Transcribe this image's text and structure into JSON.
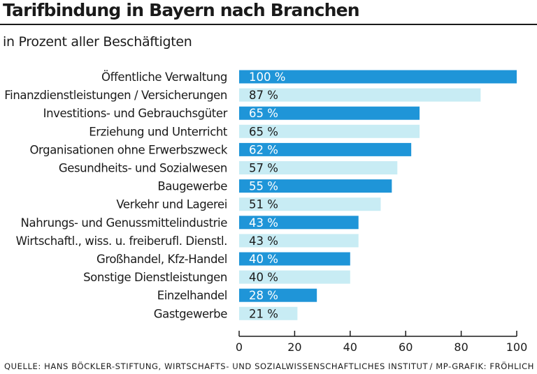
{
  "chart_data": {
    "type": "bar",
    "orientation": "horizontal",
    "title": "Tarifbindung in Bayern nach Branchen",
    "subtitle": "in Prozent aller Beschäftigten",
    "categories": [
      "Öffentliche Verwaltung",
      "Finanzdienstleistungen / Versicherungen",
      "Investitions- und Gebrauchsgüter",
      "Erziehung und Unterricht",
      "Organisationen ohne Erwerbszweck",
      "Gesundheits- und Sozialwesen",
      "Baugewerbe",
      "Verkehr und Lagerei",
      "Nahrungs- und Genussmittelindustrie",
      "Wirtschaftl., wiss. u. freiberufl. Dienstl.",
      "Großhandel, Kfz-Handel",
      "Sonstige Dienstleistungen",
      "Einzelhandel",
      "Gastgewerbe"
    ],
    "values": [
      100,
      87,
      65,
      65,
      62,
      57,
      55,
      51,
      43,
      43,
      40,
      40,
      28,
      21
    ],
    "value_labels": [
      "100 %",
      "87 %",
      "65 %",
      "65 %",
      "62 %",
      "57 %",
      "55 %",
      "51 %",
      "43 %",
      "43 %",
      "40 %",
      "40 %",
      "28 %",
      "21 %"
    ],
    "xlim": [
      0,
      100
    ],
    "xticks": [
      0,
      20,
      40,
      60,
      80,
      100
    ],
    "tick_labels": [
      "0",
      "20",
      "40",
      "60",
      "80",
      "100"
    ],
    "grid": false,
    "colors": {
      "dark": "#1f95d8",
      "light": "#c8ecf4",
      "label_on_dark": "#ffffff",
      "label_on_light": "#1a1a1a",
      "axis": "#1a1a1a"
    }
  },
  "footer": {
    "source": "QUELLE: HANS BÖCKLER-STIFTUNG, WIRTSCHAFTS- UND SOZIALWISSENSCHAFTLICHES INSTITUT",
    "credit": "/ MP-GRAFIK: FRÖHLICH"
  }
}
